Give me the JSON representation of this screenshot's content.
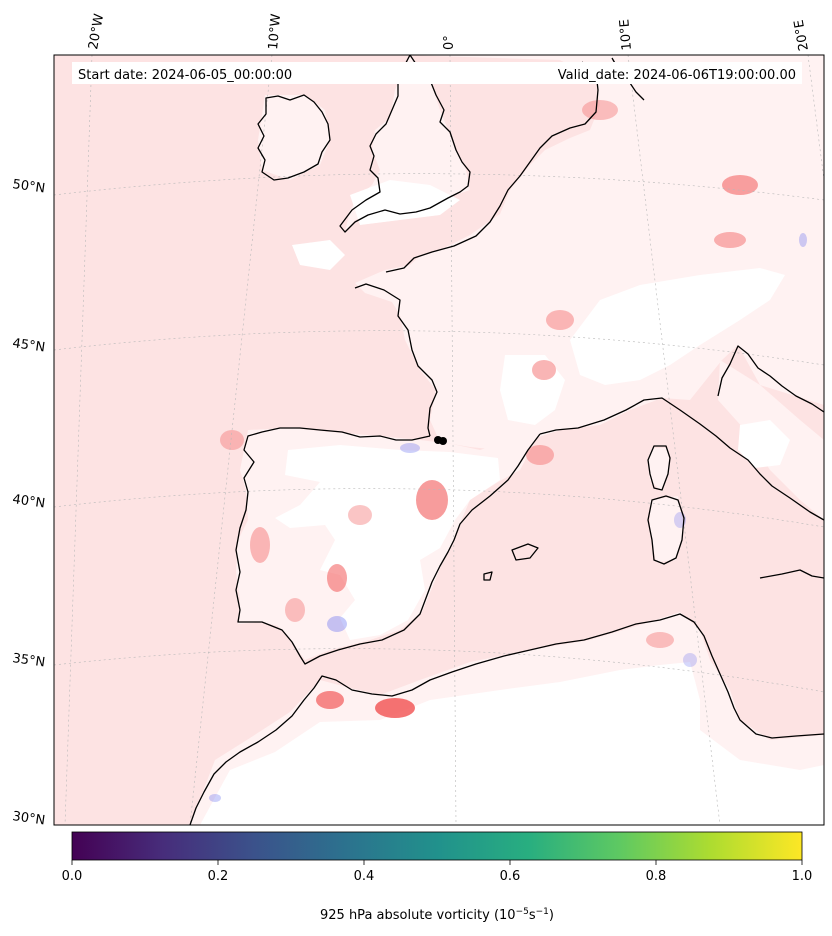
{
  "header": {
    "start_date": "Start date: 2024-06-05_00:00:00",
    "valid_date": "Valid_date: 2024-06-06T19:00:00.00"
  },
  "lon_labels": [
    "20°W",
    "10°W",
    "0°",
    "10°E",
    "20°E"
  ],
  "lat_labels": [
    "50°N",
    "45°N",
    "40°N",
    "35°N",
    "30°N"
  ],
  "colorbar": {
    "colormap": "viridis",
    "range": [
      0.0,
      1.0
    ],
    "ticks": [
      "0.0",
      "0.2",
      "0.4",
      "0.6",
      "0.8",
      "1.0"
    ],
    "label_main": "925 hPa absolute vorticity (10",
    "label_exp1": "−5",
    "label_mid": "s",
    "label_exp2": "−1",
    "label_end": ")"
  },
  "map": {
    "ocean_fill": "#fde3e3",
    "land_fill": "#fff2f2",
    "coast_color": "#000000",
    "positive_color": "#f25a5a",
    "negative_color": "#5a64f0",
    "marker_color": "#000000"
  }
}
